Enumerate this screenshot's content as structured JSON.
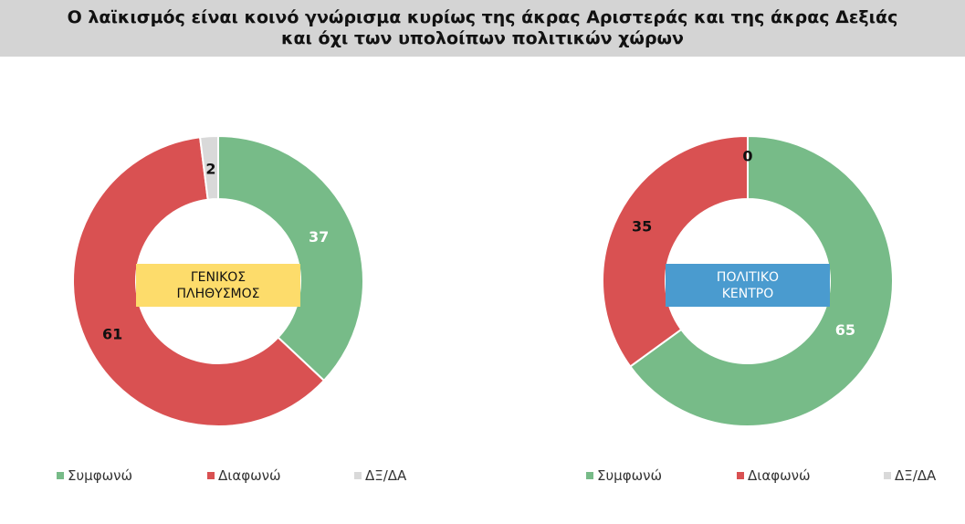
{
  "title": {
    "line1": "Ο λαϊκισμός είναι κοινό γνώρισμα κυρίως της άκρας Αριστεράς και της άκρας Δεξιάς",
    "line2": "και όχι των υπολοίπων πολιτικών χώρων"
  },
  "colors": {
    "agree": "#77bb88",
    "disagree": "#d95152",
    "dk_na": "#d9d9d9",
    "title_bg": "#d4d4d4",
    "center_general": "#fddc6b",
    "center_political": "#4a9bcf"
  },
  "chart_data": [
    {
      "type": "pie",
      "subtype": "donut",
      "center_label": [
        "ΓΕΝΙΚΟΣ",
        "ΠΛΗΘΥΣΜΟΣ"
      ],
      "categories": [
        "Συμφωνώ",
        "Διαφωνώ",
        "ΔΞ/ΔΑ"
      ],
      "values": [
        37,
        61,
        2
      ],
      "data_labels": [
        "37",
        "61",
        "2"
      ],
      "legend": [
        "Συμφωνώ",
        "Διαφωνώ",
        "ΔΞ/ΔΑ"
      ],
      "legend_placement": "bottom"
    },
    {
      "type": "pie",
      "subtype": "donut",
      "center_label": [
        "ΠΟΛΙΤΙΚΟ",
        "ΚΕΝΤΡΟ"
      ],
      "categories": [
        "Συμφωνώ",
        "Διαφωνώ",
        "ΔΞ/ΔΑ"
      ],
      "values": [
        65,
        35,
        0
      ],
      "data_labels": [
        "65",
        "35",
        "0"
      ],
      "legend": [
        "Συμφωνώ",
        "Διαφωνώ",
        "ΔΞ/ΔΑ"
      ],
      "legend_placement": "bottom"
    }
  ]
}
